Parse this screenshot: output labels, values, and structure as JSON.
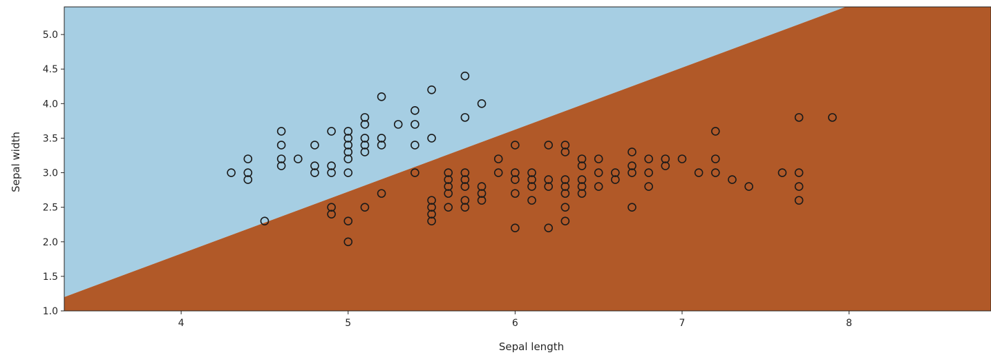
{
  "chart_data": {
    "type": "scatter",
    "title": "",
    "xlabel": "Sepal length",
    "ylabel": "Sepal width",
    "xlim": [
      3.3,
      8.85
    ],
    "ylim": [
      1.0,
      5.4
    ],
    "xticks": [
      "4",
      "5",
      "6",
      "7",
      "8"
    ],
    "yticks": [
      "1.0",
      "1.5",
      "2.0",
      "2.5",
      "3.0",
      "3.5",
      "4.0",
      "4.5",
      "5.0"
    ],
    "grid": false,
    "legend": "none",
    "regions": {
      "boundary": {
        "x1": 3.3,
        "y1": 1.2,
        "x2": 7.98,
        "y2": 5.4
      },
      "upper_color": "#a6cee3",
      "lower_color": "#b15928"
    },
    "marker": {
      "shape": "circle",
      "face": "none",
      "edge_color": "#1a1a1a"
    },
    "points": [
      [
        4.3,
        3.0
      ],
      [
        4.4,
        3.2
      ],
      [
        4.4,
        3.0
      ],
      [
        4.4,
        2.9
      ],
      [
        4.5,
        2.3
      ],
      [
        4.6,
        3.6
      ],
      [
        4.6,
        3.4
      ],
      [
        4.6,
        3.2
      ],
      [
        4.6,
        3.1
      ],
      [
        4.7,
        3.2
      ],
      [
        4.8,
        3.4
      ],
      [
        4.8,
        3.1
      ],
      [
        4.8,
        3.0
      ],
      [
        4.9,
        3.6
      ],
      [
        4.9,
        3.1
      ],
      [
        4.9,
        3.0
      ],
      [
        4.9,
        2.5
      ],
      [
        4.9,
        2.4
      ],
      [
        5.0,
        3.6
      ],
      [
        5.0,
        3.5
      ],
      [
        5.0,
        3.4
      ],
      [
        5.0,
        3.3
      ],
      [
        5.0,
        3.2
      ],
      [
        5.0,
        3.0
      ],
      [
        5.0,
        2.3
      ],
      [
        5.0,
        2.0
      ],
      [
        5.1,
        3.8
      ],
      [
        5.1,
        3.7
      ],
      [
        5.1,
        3.5
      ],
      [
        5.1,
        3.4
      ],
      [
        5.1,
        3.3
      ],
      [
        5.1,
        2.5
      ],
      [
        5.2,
        4.1
      ],
      [
        5.2,
        3.5
      ],
      [
        5.2,
        3.4
      ],
      [
        5.2,
        2.7
      ],
      [
        5.3,
        3.7
      ],
      [
        5.4,
        3.9
      ],
      [
        5.4,
        3.7
      ],
      [
        5.4,
        3.4
      ],
      [
        5.4,
        3.0
      ],
      [
        5.5,
        4.2
      ],
      [
        5.5,
        3.5
      ],
      [
        5.5,
        2.6
      ],
      [
        5.5,
        2.5
      ],
      [
        5.5,
        2.4
      ],
      [
        5.5,
        2.3
      ],
      [
        5.6,
        3.0
      ],
      [
        5.6,
        2.9
      ],
      [
        5.6,
        2.8
      ],
      [
        5.6,
        2.7
      ],
      [
        5.6,
        2.5
      ],
      [
        5.7,
        4.4
      ],
      [
        5.7,
        3.8
      ],
      [
        5.7,
        3.0
      ],
      [
        5.7,
        2.9
      ],
      [
        5.7,
        2.8
      ],
      [
        5.7,
        2.6
      ],
      [
        5.7,
        2.5
      ],
      [
        5.8,
        4.0
      ],
      [
        5.8,
        2.8
      ],
      [
        5.8,
        2.7
      ],
      [
        5.8,
        2.6
      ],
      [
        5.9,
        3.2
      ],
      [
        5.9,
        3.0
      ],
      [
        6.0,
        3.4
      ],
      [
        6.0,
        3.0
      ],
      [
        6.0,
        2.9
      ],
      [
        6.0,
        2.7
      ],
      [
        6.0,
        2.2
      ],
      [
        6.1,
        3.0
      ],
      [
        6.1,
        2.9
      ],
      [
        6.1,
        2.8
      ],
      [
        6.1,
        2.6
      ],
      [
        6.2,
        3.4
      ],
      [
        6.2,
        2.9
      ],
      [
        6.2,
        2.8
      ],
      [
        6.2,
        2.2
      ],
      [
        6.3,
        3.4
      ],
      [
        6.3,
        3.3
      ],
      [
        6.3,
        2.9
      ],
      [
        6.3,
        2.8
      ],
      [
        6.3,
        2.7
      ],
      [
        6.3,
        2.5
      ],
      [
        6.3,
        2.3
      ],
      [
        6.4,
        3.2
      ],
      [
        6.4,
        3.1
      ],
      [
        6.4,
        2.9
      ],
      [
        6.4,
        2.8
      ],
      [
        6.4,
        2.7
      ],
      [
        6.5,
        3.2
      ],
      [
        6.5,
        3.0
      ],
      [
        6.5,
        2.8
      ],
      [
        6.6,
        3.0
      ],
      [
        6.6,
        2.9
      ],
      [
        6.7,
        3.3
      ],
      [
        6.7,
        3.1
      ],
      [
        6.7,
        3.0
      ],
      [
        6.7,
        2.5
      ],
      [
        6.8,
        3.2
      ],
      [
        6.8,
        3.0
      ],
      [
        6.8,
        2.8
      ],
      [
        6.9,
        3.2
      ],
      [
        6.9,
        3.1
      ],
      [
        7.0,
        3.2
      ],
      [
        7.1,
        3.0
      ],
      [
        7.2,
        3.6
      ],
      [
        7.2,
        3.2
      ],
      [
        7.2,
        3.0
      ],
      [
        7.3,
        2.9
      ],
      [
        7.4,
        2.8
      ],
      [
        7.6,
        3.0
      ],
      [
        7.7,
        3.8
      ],
      [
        7.7,
        3.0
      ],
      [
        7.7,
        2.8
      ],
      [
        7.7,
        2.6
      ],
      [
        7.9,
        3.8
      ]
    ]
  }
}
